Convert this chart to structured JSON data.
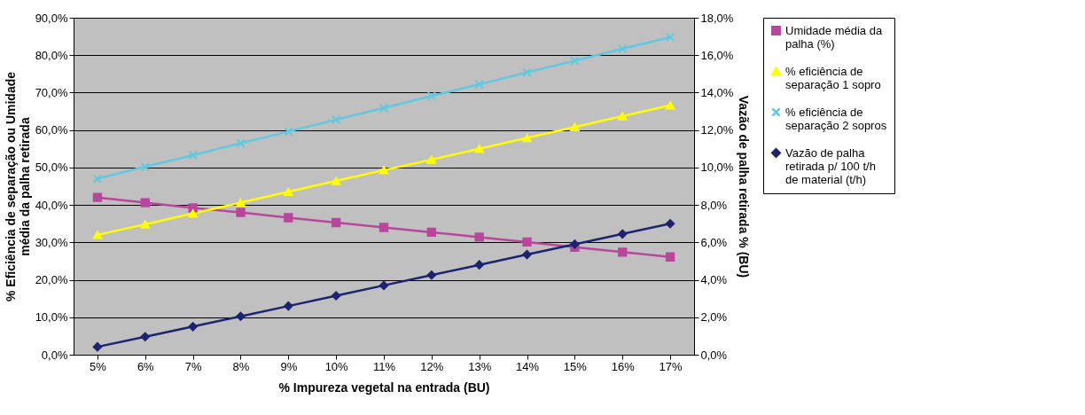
{
  "chart_data": {
    "type": "line",
    "xlabel": "% Impureza vegetal na entrada (BU)",
    "ylabel": "% Eficiência de separação ou Umidade média da palha retirada",
    "y2label": "Vazão de palha retirada % (BU)",
    "categories": [
      "5%",
      "6%",
      "7%",
      "8%",
      "9%",
      "10%",
      "11%",
      "12%",
      "13%",
      "14%",
      "15%",
      "16%",
      "17%"
    ],
    "series": [
      {
        "name": "Umidade média da palha (%)",
        "color": "#b8479c",
        "marker": "square",
        "values": [
          42.0,
          40.6,
          39.2,
          38.0,
          36.6,
          35.3,
          34.0,
          32.7,
          31.4,
          30.1,
          28.7,
          27.4,
          26.1
        ]
      },
      {
        "name": "% eficiência de separação 1 sopro",
        "color": "#ffff00",
        "marker": "triangle",
        "values": [
          32.0,
          34.8,
          37.7,
          40.6,
          43.5,
          46.4,
          49.3,
          52.1,
          55.0,
          57.9,
          60.8,
          63.7,
          66.6
        ]
      },
      {
        "name": "% eficiência de separação 2 sopros",
        "color": "#5fc9e0",
        "marker": "cross",
        "values": [
          47.0,
          50.2,
          53.3,
          56.5,
          59.6,
          62.8,
          65.9,
          69.1,
          72.2,
          75.4,
          78.5,
          81.7,
          84.8
        ]
      },
      {
        "name": "Vazão de palha retirada p/ 100 t/h de material (t/h)",
        "color": "#1c2470",
        "marker": "diamond",
        "axis": "y2",
        "values": [
          0.42,
          0.96,
          1.5,
          2.05,
          2.6,
          3.15,
          3.7,
          4.25,
          4.8,
          5.35,
          5.9,
          6.45,
          7.0
        ]
      }
    ],
    "ylim": [
      0,
      90
    ],
    "yticks": [
      {
        "value": 0,
        "label": "0,0%"
      },
      {
        "value": 10,
        "label": "10,0%"
      },
      {
        "value": 20,
        "label": "20,0%"
      },
      {
        "value": 30,
        "label": "30,0%"
      },
      {
        "value": 40,
        "label": "40,0%"
      },
      {
        "value": 50,
        "label": "50,0%"
      },
      {
        "value": 60,
        "label": "60,0%"
      },
      {
        "value": 70,
        "label": "70,0%"
      },
      {
        "value": 80,
        "label": "80,0%"
      },
      {
        "value": 90,
        "label": "90,0%"
      }
    ],
    "y2lim": [
      0,
      18
    ],
    "y2ticks": [
      {
        "value": 0,
        "label": "0,0%"
      },
      {
        "value": 2,
        "label": "2,0%"
      },
      {
        "value": 4,
        "label": "4,0%"
      },
      {
        "value": 6,
        "label": "6,0%"
      },
      {
        "value": 8,
        "label": "8,0%"
      },
      {
        "value": 10,
        "label": "10,0%"
      },
      {
        "value": 12,
        "label": "12,0%"
      },
      {
        "value": 14,
        "label": "14,0%"
      },
      {
        "value": 16,
        "label": "16,0%"
      },
      {
        "value": 18,
        "label": "18,0%"
      }
    ],
    "grid": "y",
    "legend": "right"
  }
}
